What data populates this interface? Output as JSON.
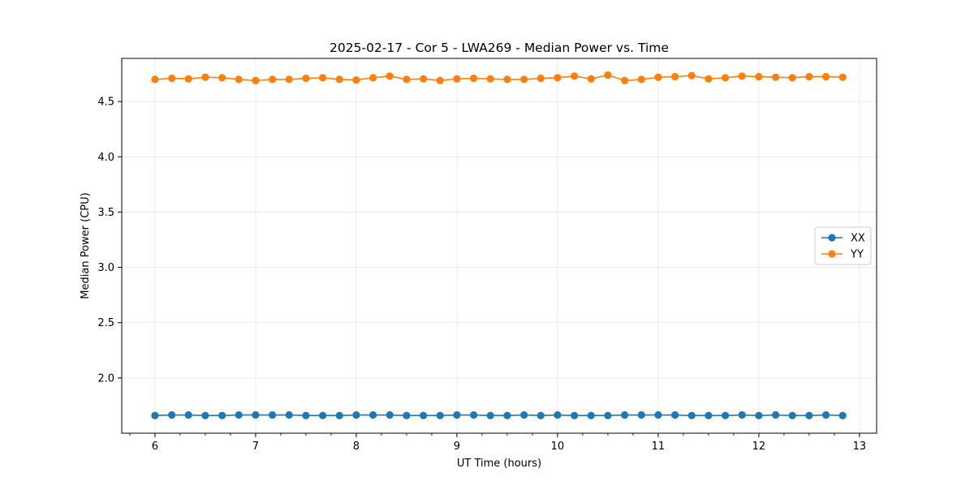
{
  "chart_data": {
    "type": "line",
    "title": "2025-02-17 - Cor 5 - LWA269 - Median Power vs. Time",
    "xlabel": "UT Time (hours)",
    "ylabel": "Median Power (CPU)",
    "xlim": [
      5.67,
      13.17
    ],
    "ylim": [
      1.5,
      4.89
    ],
    "xticks": [
      6,
      7,
      8,
      9,
      10,
      11,
      12,
      13
    ],
    "xtick_labels": [
      "6",
      "7",
      "8",
      "9",
      "10",
      "11",
      "12",
      "13"
    ],
    "xminor_step": 0.25,
    "yticks": [
      2.0,
      2.5,
      3.0,
      3.5,
      4.0,
      4.5
    ],
    "ytick_labels": [
      "2.0",
      "2.5",
      "3.0",
      "3.5",
      "4.0",
      "4.5"
    ],
    "grid": true,
    "legend_position": "center-right",
    "x": [
      6.0,
      6.167,
      6.333,
      6.5,
      6.667,
      6.833,
      7.0,
      7.167,
      7.333,
      7.5,
      7.667,
      7.833,
      8.0,
      8.167,
      8.333,
      8.5,
      8.667,
      8.833,
      9.0,
      9.167,
      9.333,
      9.5,
      9.667,
      9.833,
      10.0,
      10.167,
      10.333,
      10.5,
      10.667,
      10.833,
      11.0,
      11.167,
      11.333,
      11.5,
      11.667,
      11.833,
      12.0,
      12.167,
      12.333,
      12.5,
      12.667,
      12.833
    ],
    "series": [
      {
        "name": "XX",
        "color": "#1f77b4",
        "values": [
          1.66,
          1.665,
          1.665,
          1.66,
          1.66,
          1.665,
          1.665,
          1.665,
          1.665,
          1.66,
          1.66,
          1.66,
          1.665,
          1.665,
          1.665,
          1.66,
          1.66,
          1.66,
          1.665,
          1.665,
          1.66,
          1.66,
          1.665,
          1.66,
          1.665,
          1.66,
          1.66,
          1.66,
          1.665,
          1.665,
          1.665,
          1.665,
          1.66,
          1.66,
          1.66,
          1.665,
          1.66,
          1.665,
          1.66,
          1.66,
          1.665,
          1.66
        ]
      },
      {
        "name": "YY",
        "color": "#ff7f0e",
        "values": [
          4.7,
          4.71,
          4.705,
          4.72,
          4.715,
          4.7,
          4.69,
          4.7,
          4.7,
          4.71,
          4.715,
          4.7,
          4.695,
          4.715,
          4.73,
          4.7,
          4.705,
          4.69,
          4.705,
          4.71,
          4.705,
          4.7,
          4.7,
          4.71,
          4.715,
          4.73,
          4.705,
          4.74,
          4.69,
          4.7,
          4.72,
          4.725,
          4.735,
          4.705,
          4.715,
          4.73,
          4.725,
          4.72,
          4.715,
          4.725,
          4.725,
          4.72
        ]
      }
    ]
  }
}
